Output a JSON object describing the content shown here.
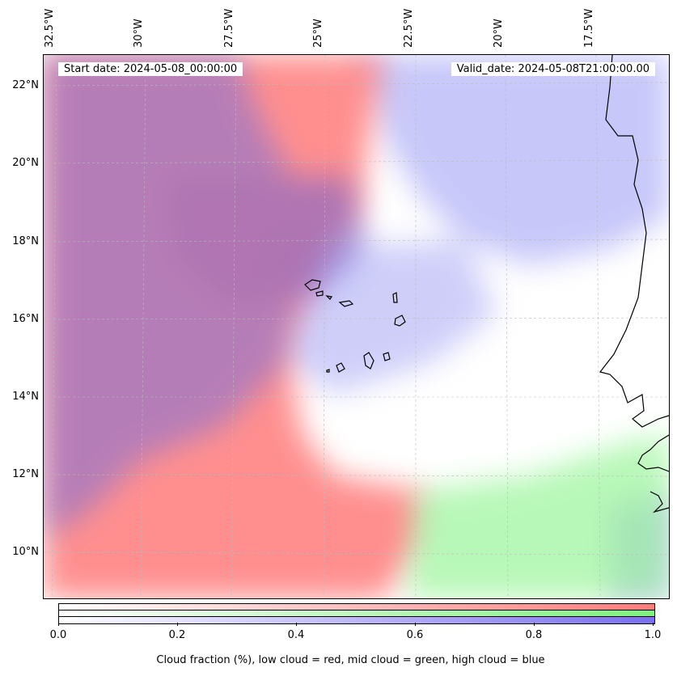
{
  "map": {
    "start_date": "Start date: 2024-05-08_00:00:00",
    "valid_date": "Valid_date: 2024-05-08T21:00:00.00",
    "lon_labels": [
      "32.5°W",
      "30°W",
      "27.5°W",
      "25°W",
      "22.5°W",
      "20°W",
      "17.5°W"
    ],
    "lat_labels": [
      "22°N",
      "20°N",
      "18°N",
      "16°N",
      "14°N",
      "12°N",
      "10°N"
    ],
    "layers": {
      "low_cloud": {
        "name": "low cloud",
        "color": "#ff7b7b"
      },
      "mid_cloud": {
        "name": "mid cloud",
        "color": "#7ff07f"
      },
      "high_cloud": {
        "name": "high cloud",
        "color": "#7a6ff0"
      }
    }
  },
  "colorbar": {
    "ticks": [
      "0.0",
      "0.2",
      "0.4",
      "0.6",
      "0.8",
      "1.0"
    ],
    "title": "Cloud fraction (%), low cloud = red, mid cloud = green, high cloud = blue"
  }
}
